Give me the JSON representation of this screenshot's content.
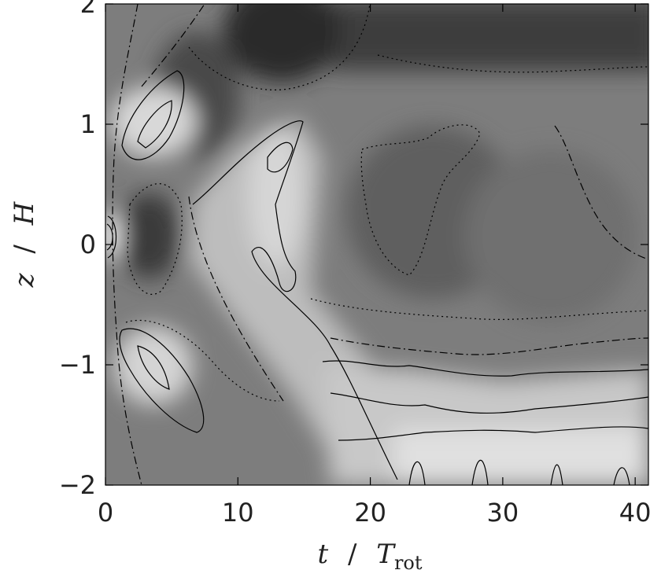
{
  "chart_data": {
    "type": "heatmap",
    "title": "",
    "xlabel": {
      "text": "t",
      "slash": "/",
      "symbol": "T",
      "subscript": "rot"
    },
    "ylabel": {
      "text": "z",
      "slash": "/",
      "symbol": "H"
    },
    "xlim": [
      0,
      41
    ],
    "ylim": [
      -2,
      2
    ],
    "xticks": [
      0,
      10,
      20,
      30,
      40
    ],
    "xtick_labels": [
      "0",
      "10",
      "20",
      "30",
      "40"
    ],
    "yticks": [
      -2,
      -1,
      0,
      1,
      2
    ],
    "ytick_labels": [
      "−2",
      "−1",
      "0",
      "1",
      "2"
    ],
    "colorscale": "grayscale (dark = low, light = high)",
    "contour_styles": [
      "solid",
      "dash-dot",
      "dotted"
    ],
    "features": [
      {
        "kind": "bright",
        "t": 4,
        "z": 1.0
      },
      {
        "kind": "bright",
        "t": 3.5,
        "z": -1.0
      },
      {
        "kind": "dark",
        "t": 3,
        "z": 0.1
      },
      {
        "kind": "dark",
        "t": 14,
        "z": 1.9
      },
      {
        "kind": "bright_band",
        "t_range": [
          8,
          16
        ],
        "z_range": [
          -0.7,
          1.1
        ]
      },
      {
        "kind": "bright_band",
        "t_range": [
          20,
          41
        ],
        "z_range": [
          -2.0,
          -1.0
        ]
      },
      {
        "kind": "dark_band",
        "t_range": [
          30,
          41
        ],
        "z_range": [
          1.5,
          2.0
        ]
      }
    ]
  }
}
